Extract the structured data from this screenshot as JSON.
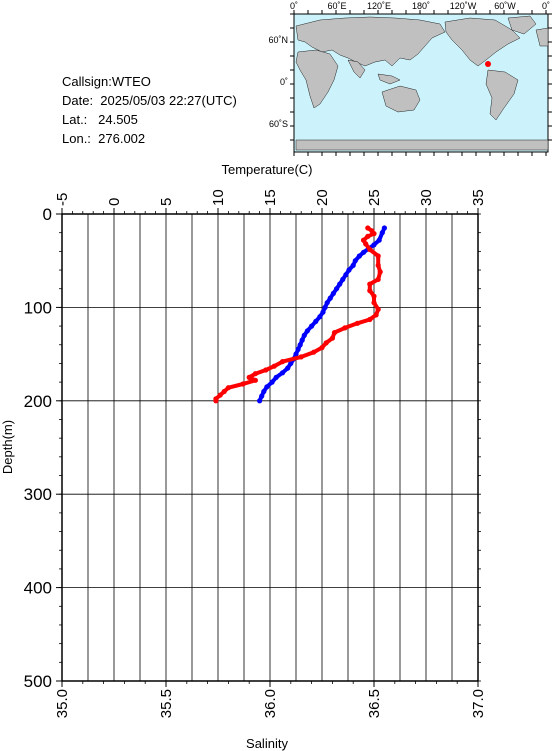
{
  "header": {
    "callsign": "Callsign:WTEO",
    "date": "Date:  2025/05/03 22:27(UTC)",
    "lat": "Lat.:   24.505",
    "lon": "Lon.:  276.002"
  },
  "map": {
    "lon_labels": [
      "0˚",
      "60˚E",
      "120˚E",
      "180˚",
      "120˚W",
      "60˚W",
      "0˚"
    ],
    "lat_labels": [
      "60˚N",
      "0˚",
      "60˚S"
    ],
    "colors": {
      "ocean": "#ccf3fb",
      "land": "#c0c0c0",
      "marker": "#ff0000"
    }
  },
  "chart_data": {
    "type": "line",
    "title": "",
    "x_top_label": "Temperature(C)",
    "x_top_ticks": [
      "-5",
      "0",
      "5",
      "10",
      "15",
      "20",
      "25",
      "30",
      "35"
    ],
    "x_top_range": [
      -5,
      35
    ],
    "x_bottom_label": "Salinity",
    "x_bottom_ticks": [
      "35.0",
      "35.5",
      "36.0",
      "36.5",
      "37.0"
    ],
    "x_bottom_range": [
      35.0,
      37.0
    ],
    "ylabel": "Depth(m)",
    "y_ticks": [
      "0",
      "100",
      "200",
      "300",
      "400",
      "500"
    ],
    "y_range": [
      0,
      500
    ],
    "y_inverted": true,
    "grid": true,
    "series": [
      {
        "color": "#0000ff",
        "axis": "temperature",
        "points": [
          [
            26.0,
            15
          ],
          [
            25.8,
            20
          ],
          [
            25.5,
            28
          ],
          [
            25.0,
            33
          ],
          [
            24.5,
            37
          ],
          [
            24.0,
            41
          ],
          [
            23.6,
            45
          ],
          [
            23.2,
            50
          ],
          [
            23.0,
            55
          ],
          [
            22.6,
            60
          ],
          [
            22.3,
            65
          ],
          [
            22.0,
            70
          ],
          [
            21.7,
            75
          ],
          [
            21.4,
            80
          ],
          [
            21.1,
            85
          ],
          [
            20.8,
            90
          ],
          [
            20.5,
            95
          ],
          [
            20.3,
            100
          ],
          [
            20.1,
            105
          ],
          [
            19.8,
            110
          ],
          [
            19.4,
            115
          ],
          [
            19.0,
            120
          ],
          [
            18.6,
            125
          ],
          [
            18.3,
            130
          ],
          [
            18.1,
            135
          ],
          [
            17.9,
            140
          ],
          [
            17.7,
            145
          ],
          [
            17.5,
            150
          ],
          [
            17.3,
            155
          ],
          [
            17.0,
            160
          ],
          [
            16.7,
            165
          ],
          [
            16.2,
            170
          ],
          [
            15.6,
            175
          ],
          [
            15.2,
            180
          ],
          [
            14.7,
            185
          ],
          [
            14.4,
            190
          ],
          [
            14.2,
            195
          ],
          [
            14.0,
            200
          ]
        ]
      },
      {
        "color": "#ff0000",
        "axis": "salinity",
        "points": [
          [
            36.45,
            28
          ],
          [
            36.46,
            32
          ],
          [
            36.48,
            38
          ],
          [
            36.52,
            45
          ],
          [
            36.52,
            55
          ],
          [
            36.53,
            62
          ],
          [
            36.52,
            70
          ],
          [
            36.48,
            75
          ],
          [
            36.48,
            82
          ],
          [
            36.5,
            88
          ],
          [
            36.5,
            95
          ],
          [
            36.52,
            102
          ],
          [
            36.51,
            108
          ],
          [
            36.48,
            113
          ],
          [
            36.42,
            117
          ],
          [
            36.36,
            122
          ],
          [
            36.31,
            127
          ],
          [
            36.3,
            133
          ],
          [
            36.27,
            138
          ],
          [
            36.25,
            143
          ],
          [
            36.21,
            148
          ],
          [
            36.15,
            153
          ],
          [
            36.06,
            158
          ],
          [
            36.02,
            163
          ],
          [
            35.98,
            167
          ],
          [
            35.93,
            171
          ],
          [
            35.9,
            175
          ],
          [
            35.93,
            178
          ],
          [
            35.87,
            182
          ],
          [
            35.8,
            186
          ],
          [
            35.78,
            190
          ],
          [
            35.76,
            194
          ],
          [
            35.74,
            198
          ],
          [
            35.74,
            200
          ]
        ]
      },
      {
        "color": "#ff0000",
        "axis": "salinity",
        "points": [
          [
            36.47,
            15
          ],
          [
            36.49,
            18
          ],
          [
            36.5,
            21
          ],
          [
            36.47,
            24
          ],
          [
            36.45,
            28
          ]
        ]
      }
    ]
  }
}
